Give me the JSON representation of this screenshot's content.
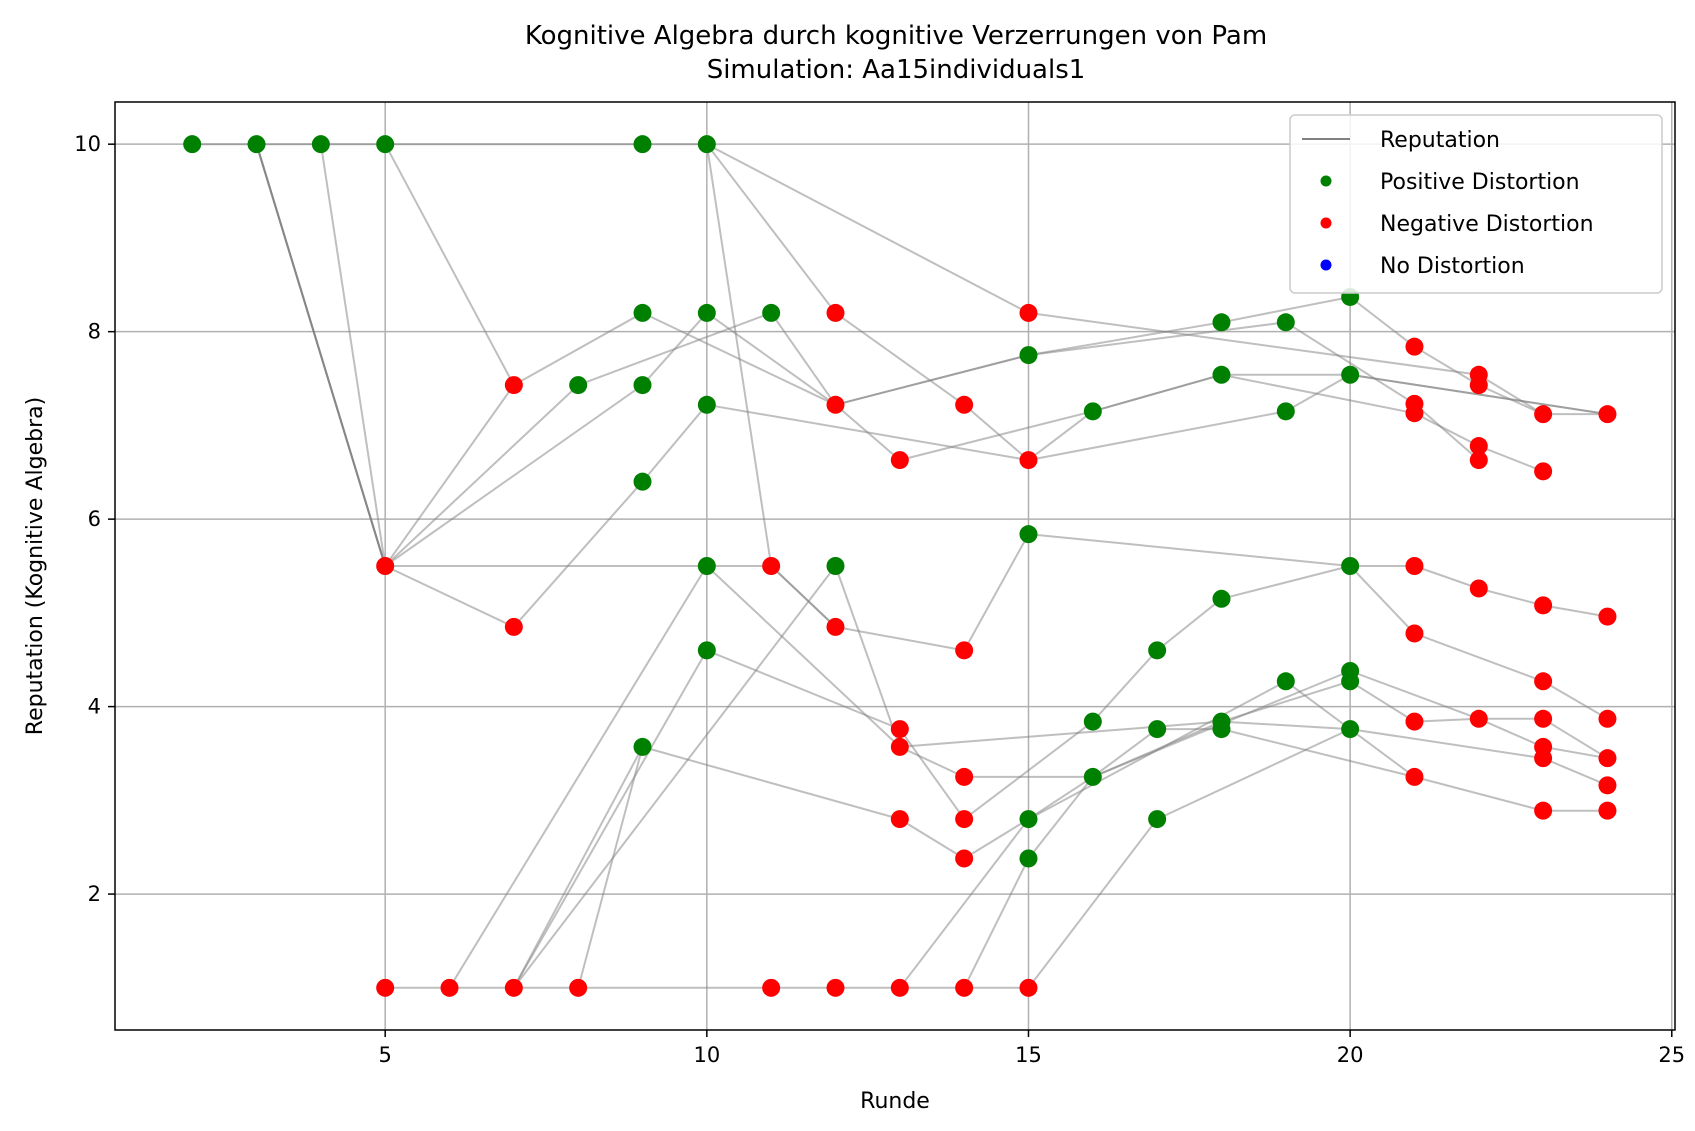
{
  "chart_data": {
    "type": "scatter",
    "title": "Kognitive Algebra durch kognitive Verzerrungen von Pam",
    "subtitle": "Simulation: Aa15individuals1",
    "xlabel": "Runde",
    "ylabel": "Reputation (Kognitive Algebra)",
    "xlim": [
      0.8,
      25.05
    ],
    "ylim": [
      0.55,
      10.45
    ],
    "xticks": [
      5,
      10,
      15,
      20,
      25
    ],
    "yticks": [
      2,
      4,
      6,
      8,
      10
    ],
    "grid": true,
    "legend_position": "top-right",
    "colors": {
      "line": "#808080",
      "positive": "#008000",
      "negative": "#ff0000",
      "none": "#0000ff"
    },
    "legend": [
      {
        "label": "Reputation",
        "kind": "line",
        "color": "#808080"
      },
      {
        "label": "Positive Distortion",
        "kind": "point",
        "color": "#008000"
      },
      {
        "label": "Negative Distortion",
        "kind": "point",
        "color": "#ff0000"
      },
      {
        "label": "No Distortion",
        "kind": "point",
        "color": "#0000ff"
      }
    ],
    "series": [
      {
        "points": [
          [
            3,
            10
          ],
          [
            5,
            5.5
          ],
          [
            7,
            7.43
          ],
          [
            9,
            8.2
          ],
          [
            12,
            7.22
          ],
          [
            15,
            7.75
          ],
          [
            18,
            8.1
          ],
          [
            20,
            8.37
          ],
          [
            21,
            7.84
          ],
          [
            22,
            7.43
          ],
          [
            23,
            7.12
          ]
        ]
      },
      {
        "points": [
          [
            3,
            10
          ],
          [
            5,
            5.5
          ],
          [
            9,
            7.43
          ],
          [
            10,
            8.2
          ],
          [
            12,
            7.22
          ],
          [
            15,
            7.75
          ],
          [
            19,
            8.1
          ],
          [
            21,
            7.23
          ],
          [
            22,
            6.63
          ]
        ]
      },
      {
        "points": [
          [
            2,
            10
          ],
          [
            3,
            10
          ],
          [
            4,
            10
          ],
          [
            5,
            10
          ],
          [
            9,
            10
          ],
          [
            10,
            10
          ]
        ]
      },
      {
        "points": [
          [
            3,
            10
          ],
          [
            5,
            5.5
          ],
          [
            7,
            4.85
          ],
          [
            9,
            6.4
          ],
          [
            10,
            7.22
          ],
          [
            15,
            6.63
          ],
          [
            16,
            7.15
          ],
          [
            18,
            7.54
          ],
          [
            21,
            7.13
          ],
          [
            22,
            6.78
          ],
          [
            23,
            6.51
          ]
        ]
      },
      {
        "points": [
          [
            3,
            10
          ],
          [
            5,
            5.5
          ],
          [
            8,
            7.43
          ],
          [
            11,
            8.2
          ],
          [
            12,
            7.22
          ],
          [
            13,
            6.63
          ],
          [
            16,
            7.15
          ],
          [
            18,
            7.54
          ],
          [
            20,
            7.54
          ],
          [
            24,
            7.12
          ]
        ]
      },
      {
        "points": [
          [
            4,
            10
          ],
          [
            5,
            5.5
          ],
          [
            11,
            5.5
          ],
          [
            12,
            4.85
          ],
          [
            14,
            4.6
          ],
          [
            15,
            5.84
          ],
          [
            20,
            5.5
          ],
          [
            21,
            4.78
          ],
          [
            23,
            4.27
          ],
          [
            24,
            3.87
          ]
        ]
      },
      {
        "points": [
          [
            5,
            10
          ],
          [
            7,
            7.43
          ]
        ]
      },
      {
        "points": [
          [
            10,
            10
          ],
          [
            12,
            8.2
          ],
          [
            14,
            7.22
          ],
          [
            15,
            6.63
          ],
          [
            19,
            7.15
          ],
          [
            20,
            7.54
          ],
          [
            24,
            7.12
          ]
        ]
      },
      {
        "points": [
          [
            10,
            10
          ],
          [
            15,
            8.2
          ],
          [
            22,
            7.54
          ],
          [
            23,
            7.12
          ],
          [
            24,
            7.12
          ]
        ]
      },
      {
        "points": [
          [
            10,
            10
          ],
          [
            11,
            5.5
          ],
          [
            12,
            4.85
          ]
        ]
      },
      {
        "points": [
          [
            5,
            1
          ],
          [
            6,
            1
          ],
          [
            7,
            1
          ],
          [
            8,
            1
          ],
          [
            11,
            1
          ],
          [
            12,
            1
          ],
          [
            13,
            1
          ],
          [
            14,
            1
          ],
          [
            15,
            1
          ]
        ]
      },
      {
        "points": [
          [
            6,
            1
          ],
          [
            10,
            5.5
          ],
          [
            13,
            3.57
          ],
          [
            18,
            3.84
          ],
          [
            20,
            4.27
          ],
          [
            21,
            3.84
          ],
          [
            22,
            3.87
          ],
          [
            23,
            3.87
          ],
          [
            24,
            3.45
          ]
        ]
      },
      {
        "points": [
          [
            7,
            1
          ],
          [
            9,
            3.57
          ],
          [
            13,
            2.8
          ],
          [
            14,
            2.38
          ],
          [
            15,
            2.8
          ],
          [
            19,
            4.27
          ],
          [
            21,
            3.25
          ],
          [
            23,
            2.89
          ],
          [
            24,
            2.89
          ]
        ]
      },
      {
        "points": [
          [
            7,
            1
          ],
          [
            10,
            4.6
          ],
          [
            13,
            3.76
          ],
          [
            14,
            2.8
          ],
          [
            16,
            3.84
          ],
          [
            17,
            4.6
          ],
          [
            18,
            5.15
          ],
          [
            20,
            5.5
          ],
          [
            21,
            5.5
          ],
          [
            22,
            5.26
          ],
          [
            23,
            5.08
          ],
          [
            24,
            4.96
          ]
        ]
      },
      {
        "points": [
          [
            7,
            1
          ],
          [
            12,
            5.5
          ],
          [
            13,
            3.57
          ],
          [
            14,
            3.25
          ],
          [
            16,
            3.25
          ],
          [
            18,
            3.84
          ],
          [
            20,
            3.76
          ],
          [
            23,
            3.45
          ],
          [
            24,
            3.16
          ]
        ]
      },
      {
        "points": [
          [
            8,
            1
          ],
          [
            9,
            3.57
          ]
        ]
      },
      {
        "points": [
          [
            13,
            1
          ],
          [
            15,
            2.8
          ],
          [
            16,
            3.25
          ],
          [
            20,
            4.38
          ],
          [
            22,
            3.87
          ],
          [
            23,
            3.57
          ],
          [
            24,
            3.45
          ]
        ]
      },
      {
        "points": [
          [
            14,
            1
          ],
          [
            15,
            2.38
          ],
          [
            16,
            3.25
          ],
          [
            17,
            3.76
          ],
          [
            18,
            3.76
          ],
          [
            21,
            3.25
          ]
        ]
      },
      {
        "points": [
          [
            15,
            1
          ],
          [
            17,
            2.8
          ],
          [
            20,
            3.76
          ]
        ]
      }
    ],
    "positive_points": [
      [
        2,
        10
      ],
      [
        3,
        10
      ],
      [
        4,
        10
      ],
      [
        5,
        10
      ],
      [
        9,
        10
      ],
      [
        10,
        10
      ],
      [
        9,
        8.2
      ],
      [
        10,
        8.2
      ],
      [
        11,
        8.2
      ],
      [
        8,
        7.43
      ],
      [
        9,
        7.43
      ],
      [
        10,
        7.22
      ],
      [
        9,
        6.4
      ],
      [
        15,
        7.75
      ],
      [
        16,
        7.15
      ],
      [
        18,
        8.1
      ],
      [
        19,
        8.1
      ],
      [
        20,
        8.37
      ],
      [
        18,
        7.54
      ],
      [
        19,
        7.15
      ],
      [
        20,
        7.54
      ],
      [
        10,
        5.5
      ],
      [
        12,
        5.5
      ],
      [
        10,
        4.6
      ],
      [
        9,
        3.57
      ],
      [
        15,
        5.84
      ],
      [
        18,
        5.15
      ],
      [
        17,
        4.6
      ],
      [
        20,
        5.5
      ],
      [
        16,
        3.84
      ],
      [
        17,
        3.76
      ],
      [
        18,
        3.84
      ],
      [
        18,
        3.76
      ],
      [
        19,
        4.27
      ],
      [
        20,
        4.38
      ],
      [
        20,
        4.27
      ],
      [
        20,
        3.76
      ],
      [
        16,
        3.25
      ],
      [
        15,
        2.8
      ],
      [
        15,
        2.38
      ],
      [
        17,
        2.8
      ]
    ],
    "negative_points": [
      [
        5,
        5.5
      ],
      [
        7,
        7.43
      ],
      [
        7,
        4.85
      ],
      [
        12,
        8.2
      ],
      [
        12,
        7.22
      ],
      [
        13,
        6.63
      ],
      [
        14,
        7.22
      ],
      [
        15,
        8.2
      ],
      [
        15,
        6.63
      ],
      [
        21,
        7.84
      ],
      [
        22,
        7.54
      ],
      [
        22,
        7.43
      ],
      [
        21,
        7.23
      ],
      [
        21,
        7.13
      ],
      [
        22,
        6.78
      ],
      [
        22,
        6.63
      ],
      [
        23,
        7.12
      ],
      [
        23,
        6.51
      ],
      [
        24,
        7.12
      ],
      [
        11,
        5.5
      ],
      [
        12,
        4.85
      ],
      [
        14,
        4.6
      ],
      [
        21,
        5.5
      ],
      [
        22,
        5.26
      ],
      [
        23,
        5.08
      ],
      [
        24,
        4.96
      ],
      [
        21,
        4.78
      ],
      [
        13,
        3.76
      ],
      [
        13,
        3.57
      ],
      [
        14,
        3.25
      ],
      [
        13,
        2.8
      ],
      [
        14,
        2.8
      ],
      [
        14,
        2.38
      ],
      [
        21,
        3.84
      ],
      [
        22,
        3.87
      ],
      [
        23,
        3.87
      ],
      [
        23,
        4.27
      ],
      [
        24,
        3.87
      ],
      [
        23,
        3.57
      ],
      [
        23,
        3.45
      ],
      [
        24,
        3.45
      ],
      [
        24,
        3.16
      ],
      [
        21,
        3.25
      ],
      [
        23,
        2.89
      ],
      [
        24,
        2.89
      ],
      [
        5,
        1
      ],
      [
        6,
        1
      ],
      [
        7,
        1
      ],
      [
        8,
        1
      ],
      [
        11,
        1
      ],
      [
        12,
        1
      ],
      [
        13,
        1
      ],
      [
        14,
        1
      ],
      [
        15,
        1
      ]
    ],
    "neutral_points": []
  }
}
